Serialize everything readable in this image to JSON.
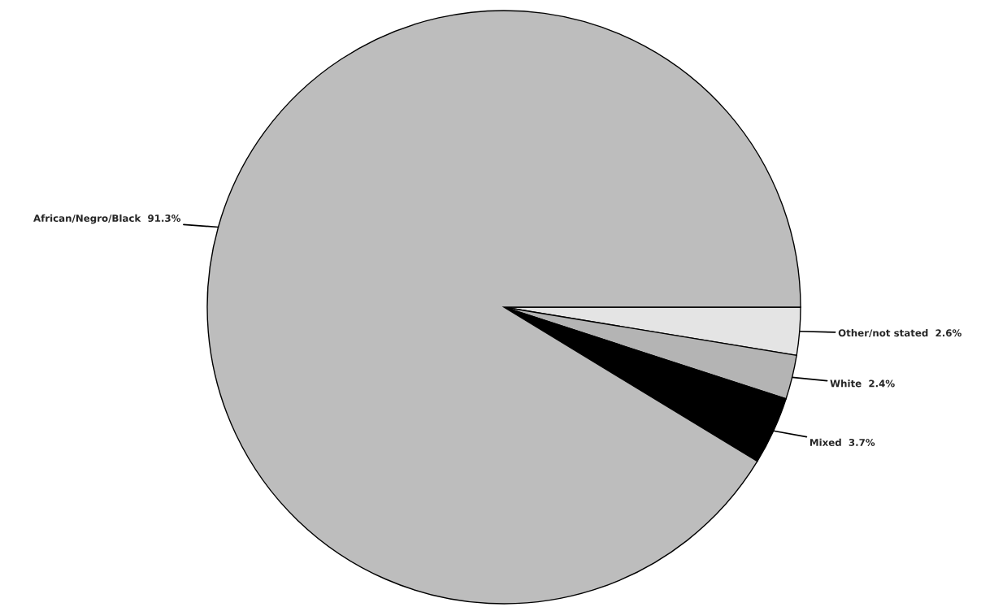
{
  "chart_data": {
    "type": "pie",
    "categories": [
      "Other/not stated",
      "White",
      "Mixed",
      "African/Negro/Black"
    ],
    "values": [
      2.6,
      2.4,
      3.7,
      91.3
    ],
    "value_labels": [
      "2.6%",
      "2.4%",
      "3.7%",
      "91.3%"
    ],
    "colors": [
      "#e4e4e4",
      "#b4b4b4",
      "#000000",
      "#bdbdbd"
    ]
  }
}
